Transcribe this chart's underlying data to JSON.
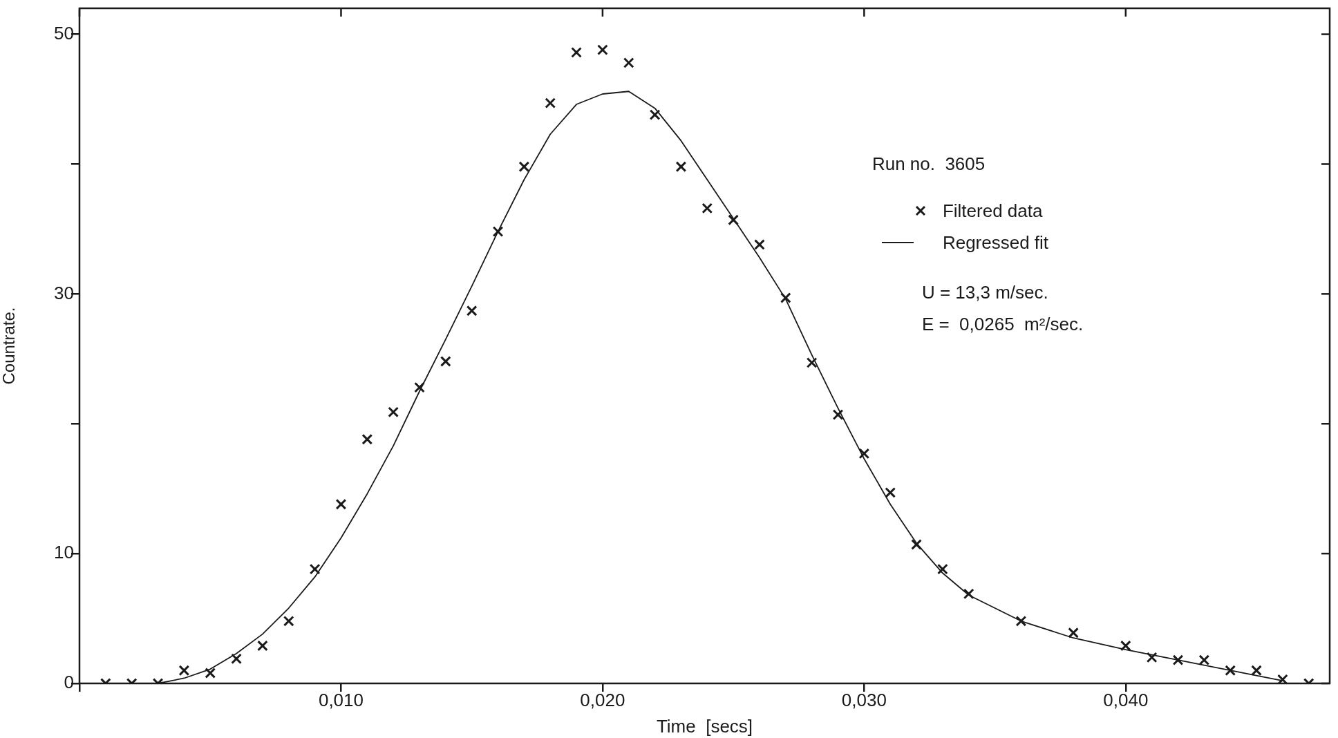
{
  "chart_data": {
    "type": "scatter",
    "xlabel": "Time  [secs]",
    "ylabel": "Countrate.",
    "legend_title": "Run no.  3605",
    "legend": "top right",
    "grid": false,
    "xlim": [
      0,
      0.0478
    ],
    "ylim": [
      0,
      52
    ],
    "xticks": [
      {
        "value": 0,
        "label": null
      },
      {
        "value": 0.01,
        "label": "0,010"
      },
      {
        "value": 0.02,
        "label": "0,020"
      },
      {
        "value": 0.03,
        "label": "0,030"
      },
      {
        "value": 0.04,
        "label": "0,040"
      }
    ],
    "yticks": [
      0,
      {
        "value": 10,
        "label": "10"
      },
      {
        "value": 20,
        "label": null
      },
      30,
      {
        "value": 40,
        "label": null
      },
      50
    ],
    "annotations": [
      "U = 13,3 m/sec.",
      "E =  0,0265  m²/sec."
    ],
    "series": [
      {
        "name": "Filtered data",
        "type": "scatter",
        "marker": "cross",
        "color": "#1a1a1a",
        "x": [
          0.001,
          0.002,
          0.003,
          0.004,
          0.005,
          0.006,
          0.007,
          0.008,
          0.009,
          0.01,
          0.011,
          0.012,
          0.013,
          0.014,
          0.015,
          0.016,
          0.017,
          0.018,
          0.019,
          0.02,
          0.021,
          0.022,
          0.023,
          0.024,
          0.025,
          0.026,
          0.027,
          0.028,
          0.029,
          0.03,
          0.031,
          0.032,
          0.033,
          0.034,
          0.036,
          0.038,
          0.04,
          0.041,
          0.042,
          0.043,
          0.044,
          0.045,
          0.046,
          0.047
        ],
        "values": [
          0,
          0,
          0,
          1.0,
          0.8,
          1.9,
          2.9,
          4.8,
          8.8,
          13.8,
          18.8,
          20.9,
          22.8,
          24.8,
          28.7,
          34.8,
          39.8,
          44.7,
          48.6,
          48.8,
          47.8,
          43.8,
          39.8,
          36.6,
          35.7,
          33.8,
          29.7,
          24.7,
          20.7,
          17.7,
          14.7,
          10.7,
          8.8,
          6.9,
          4.8,
          3.9,
          2.9,
          2.0,
          1.8,
          1.8,
          1.0,
          1.0,
          0.3,
          0
        ]
      },
      {
        "name": "Regressed fit",
        "type": "line",
        "marker": "none",
        "line_style": "solid",
        "color": "#1a1a1a",
        "x": [
          0.003,
          0.004,
          0.005,
          0.006,
          0.007,
          0.008,
          0.009,
          0.01,
          0.011,
          0.012,
          0.013,
          0.014,
          0.015,
          0.016,
          0.017,
          0.018,
          0.019,
          0.02,
          0.021,
          0.022,
          0.023,
          0.024,
          0.025,
          0.026,
          0.027,
          0.028,
          0.029,
          0.03,
          0.031,
          0.032,
          0.033,
          0.034,
          0.036,
          0.038,
          0.04,
          0.042,
          0.044,
          0.046
        ],
        "values": [
          0,
          0.4,
          1.1,
          2.3,
          3.8,
          5.8,
          8.2,
          11.2,
          14.6,
          18.3,
          22.5,
          26.5,
          30.6,
          34.8,
          38.8,
          42.3,
          44.6,
          45.4,
          45.6,
          44.3,
          41.8,
          38.8,
          35.8,
          32.8,
          29.6,
          25.3,
          21.2,
          17.3,
          13.8,
          10.8,
          8.5,
          6.8,
          4.8,
          3.5,
          2.6,
          1.8,
          1.0,
          0.2
        ]
      }
    ]
  }
}
